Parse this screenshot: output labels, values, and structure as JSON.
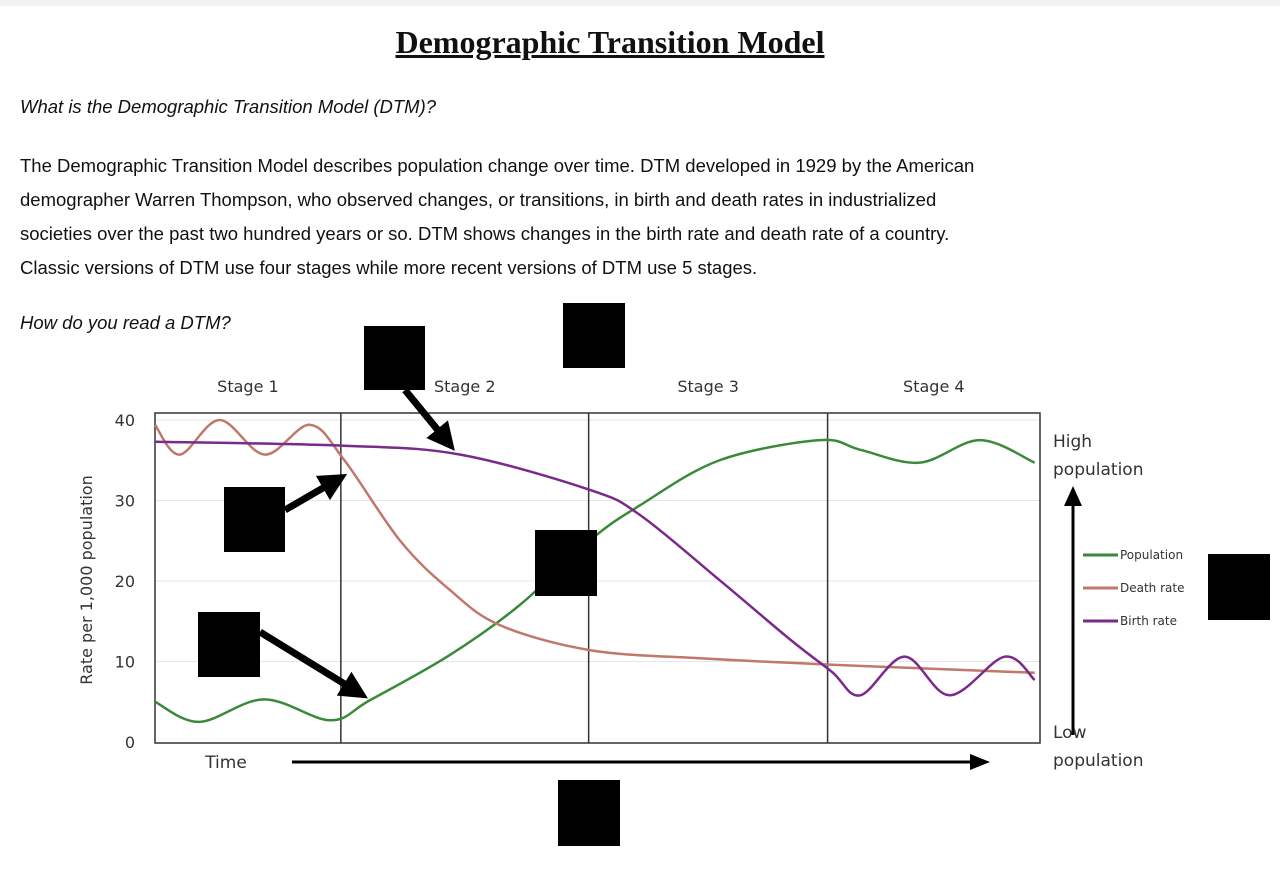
{
  "document": {
    "title": "Demographic Transition Model",
    "question1": "What is the Demographic Transition Model (DTM)?",
    "paragraph_lines": [
      "The Demographic Transition Model describes population change over time. DTM developed in 1929 by the American",
      "demographer Warren Thompson, who observed changes, or transitions, in birth and death rates in industrialized",
      "societies over the past two hundred years or so. DTM shows changes in the birth rate and death rate of a country.",
      "Classic versions of DTM use four stages while more recent versions of DTM use 5 stages."
    ],
    "question2": "How do you read a DTM?"
  },
  "chart_data": {
    "type": "line",
    "title": "",
    "xlabel": "Time",
    "ylabel": "Rate per 1,000 population",
    "ylim": [
      0,
      40
    ],
    "yticks": [
      "0",
      "10",
      "20",
      "30",
      "40"
    ],
    "xlim": [
      0,
      100
    ],
    "stages": [
      "Stage 1",
      "Stage 2",
      "Stage 3",
      "Stage 4"
    ],
    "stage_boundaries": [
      21,
      49,
      76
    ],
    "right_axis": {
      "top": "High population",
      "bottom": "Low population"
    },
    "grid": true,
    "legend_position": "right",
    "series": [
      {
        "name": "Population",
        "color": "#3a8a3a",
        "x": [
          0,
          5,
          12.3,
          19.8,
          24.3,
          33.3,
          41.2,
          49.2,
          54.8,
          63.8,
          75.1,
          79.7,
          86.4,
          93.2,
          99.4
        ],
        "y": [
          5,
          2.5,
          5.3,
          2.7,
          5.2,
          10.8,
          17,
          25.1,
          29.4,
          35,
          37.5,
          36.3,
          34.7,
          37.5,
          34.7
        ]
      },
      {
        "name": "Death rate",
        "color": "#c0786a",
        "x": [
          0,
          2.8,
          7.3,
          12.4,
          17.5,
          21.4,
          27.7,
          33.3,
          39,
          49.2,
          61.6,
          76.5,
          99.4
        ],
        "y": [
          39.4,
          35.7,
          40,
          35.7,
          39.4,
          35,
          25,
          18.9,
          14.5,
          11.4,
          10.4,
          9.6,
          8.6
        ]
      },
      {
        "name": "Birth rate",
        "color": "#7a2a8a",
        "x": [
          0,
          21.4,
          34.5,
          49.2,
          54.8,
          63.8,
          71.8,
          76.5,
          79.7,
          84.7,
          89.8,
          96,
          99.4
        ],
        "y": [
          37.3,
          36.8,
          35.7,
          31.3,
          28.2,
          20.1,
          12.7,
          8.7,
          5.8,
          10.6,
          5.8,
          10.6,
          7.7
        ]
      }
    ]
  }
}
